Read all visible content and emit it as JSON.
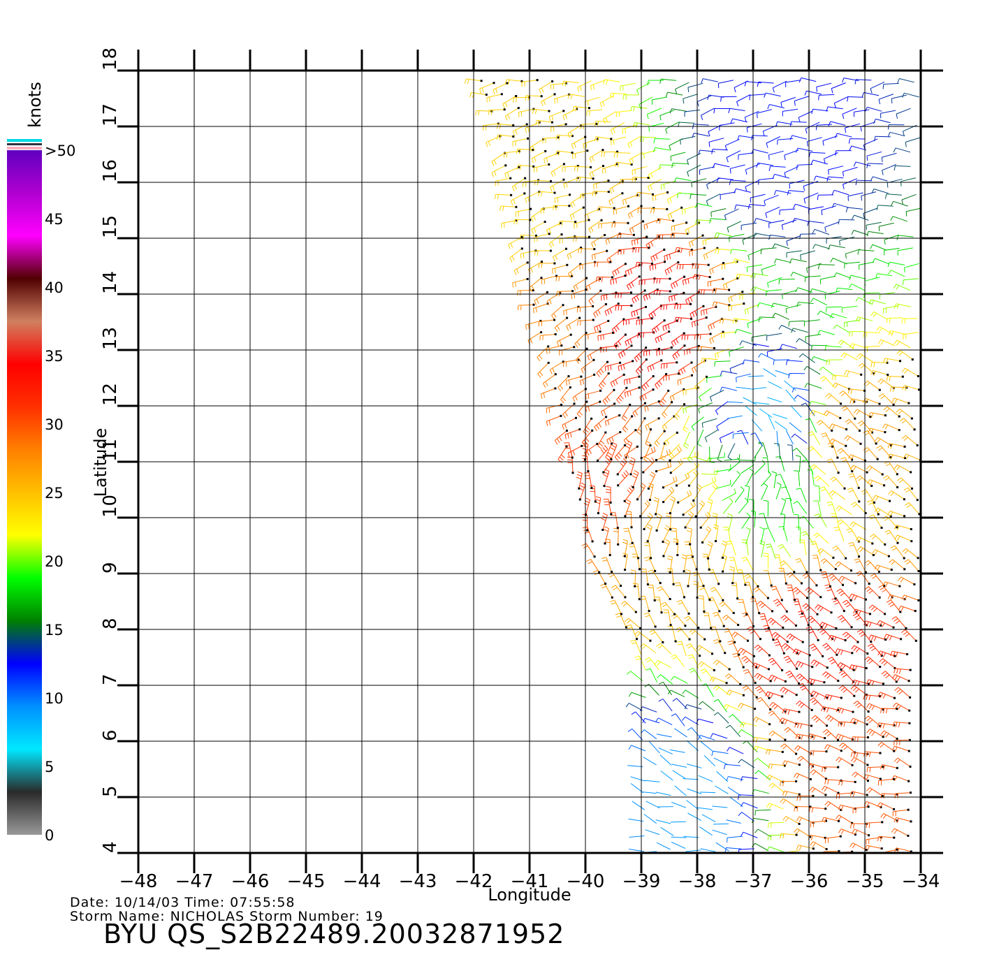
{
  "chart_data": {
    "type": "scatter",
    "subtype": "wind-barb-field",
    "xlabel": "Longitude",
    "ylabel": "Latitude",
    "xlim": [
      -48,
      -34
    ],
    "ylim": [
      4,
      18
    ],
    "x_ticks": [
      "−48",
      "−47",
      "−46",
      "−45",
      "−44",
      "−43",
      "−42",
      "−41",
      "−40",
      "−39",
      "−38",
      "−37",
      "−36",
      "−35",
      "−34"
    ],
    "y_ticks": [
      "4",
      "5",
      "6",
      "7",
      "8",
      "9",
      "10",
      "11",
      "12",
      "13",
      "14",
      "15",
      "16",
      "17",
      "18"
    ],
    "grid": true,
    "swath": {
      "top_edge": [
        [
          -42.0,
          18.0
        ],
        [
          -34.0,
          18.0
        ]
      ],
      "bottom_edge": [
        [
          -38.6,
          4.0
        ],
        [
          -34.0,
          4.0
        ]
      ],
      "left_edge": [
        [
          -42.0,
          18.0
        ],
        [
          -41.6,
          17.0
        ],
        [
          -41.0,
          14.0
        ],
        [
          -40.6,
          12.5
        ],
        [
          -40.3,
          11.0
        ],
        [
          -39.8,
          9.0
        ],
        [
          -39.0,
          7.5
        ],
        [
          -39.0,
          4.0
        ]
      ]
    },
    "speed_regions": [
      {
        "lon": -40.8,
        "lat": 15.5,
        "knots": 24
      },
      {
        "lon": -40.5,
        "lat": 13.5,
        "knots": 28
      },
      {
        "lon": -38.7,
        "lat": 13.6,
        "knots": 34
      },
      {
        "lon": -39.8,
        "lat": 10.5,
        "knots": 31
      },
      {
        "lon": -38.5,
        "lat": 9.5,
        "knots": 26
      },
      {
        "lon": -36.8,
        "lat": 10.5,
        "knots": 18
      },
      {
        "lon": -35.8,
        "lat": 7.5,
        "knots": 33
      },
      {
        "lon": -35.2,
        "lat": 5.5,
        "knots": 30
      },
      {
        "lon": -35.2,
        "lat": 11.5,
        "knots": 27
      },
      {
        "lon": -36.5,
        "lat": 16.5,
        "knots": 12
      },
      {
        "lon": -36.5,
        "lat": 11.8,
        "knots": 8
      },
      {
        "lon": -38.0,
        "lat": 5.0,
        "knots": 9
      }
    ],
    "colorbar": {
      "title": "knots",
      "labels": [
        "0",
        "5",
        "10",
        "15",
        "20",
        "25",
        "30",
        "35",
        "40",
        "45",
        ">50"
      ],
      "stops": [
        "#999999",
        "#2a2a2a",
        "#00e8ff",
        "#0090ff",
        "#0000ff",
        "#008000",
        "#00ff00",
        "#ffff00",
        "#ffc000",
        "#ff8000",
        "#ff3000",
        "#ff0000",
        "#d08060",
        "#500000",
        "#ff00ff",
        "#b000d0",
        "#6000c0"
      ]
    }
  },
  "footer": {
    "date_line": "Date: 10/14/03   Time: 07:55:58",
    "storm_line": "Storm Name: NICHOLAS   Storm Number: 19",
    "id_line": "BYU QS_S2B22489.20032871952"
  }
}
